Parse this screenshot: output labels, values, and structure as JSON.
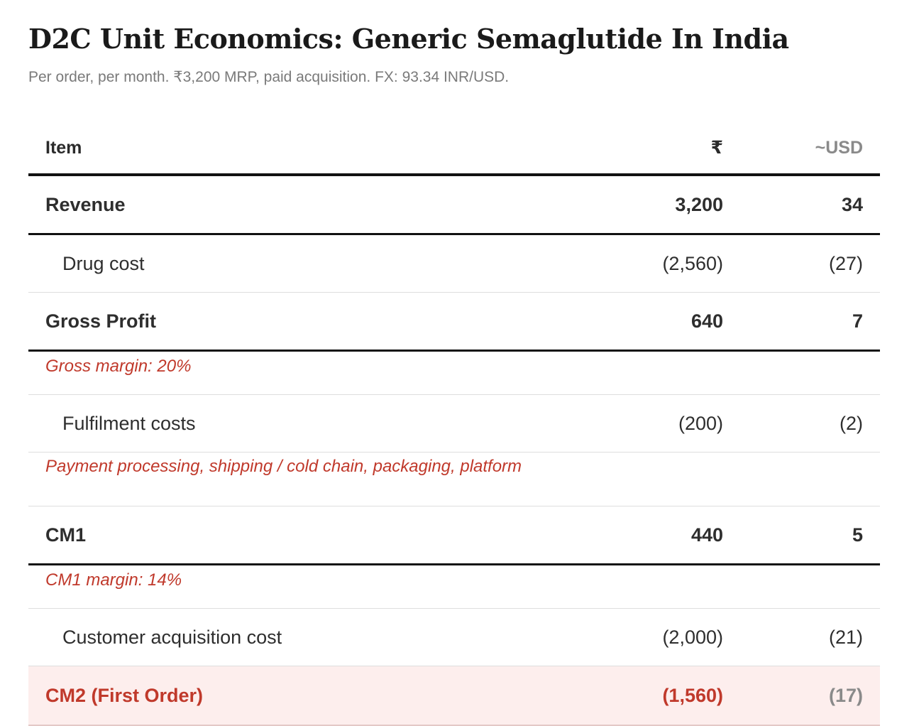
{
  "title": "D2C Unit Economics: Generic Semaglutide In India",
  "subtitle": "Per order, per month. ₹3,200 MRP, paid acquisition. FX: 93.34 INR/USD.",
  "table": {
    "headers": {
      "item": "Item",
      "inr": "₹",
      "usd": "~USD"
    },
    "rows": {
      "revenue": {
        "label": "Revenue",
        "inr": "3,200",
        "usd": "34"
      },
      "drug_cost": {
        "label": "Drug cost",
        "inr": "(2,560)",
        "usd": "(27)"
      },
      "gross_profit": {
        "label": "Gross Profit",
        "inr": "640",
        "usd": "7"
      },
      "gross_margin_note": "Gross margin: 20%",
      "fulfilment": {
        "label": "Fulfilment costs",
        "inr": "(200)",
        "usd": "(2)"
      },
      "fulfilment_note": "Payment processing, shipping / cold chain, packaging, platform",
      "cm1": {
        "label": "CM1",
        "inr": "440",
        "usd": "5"
      },
      "cm1_margin_note": "CM1 margin: 14%",
      "cac": {
        "label": "Customer acquisition cost",
        "inr": "(2,000)",
        "usd": "(21)"
      },
      "cm2": {
        "label": "CM2 (First Order)",
        "inr": "(1,560)",
        "usd": "(17)"
      }
    }
  }
}
